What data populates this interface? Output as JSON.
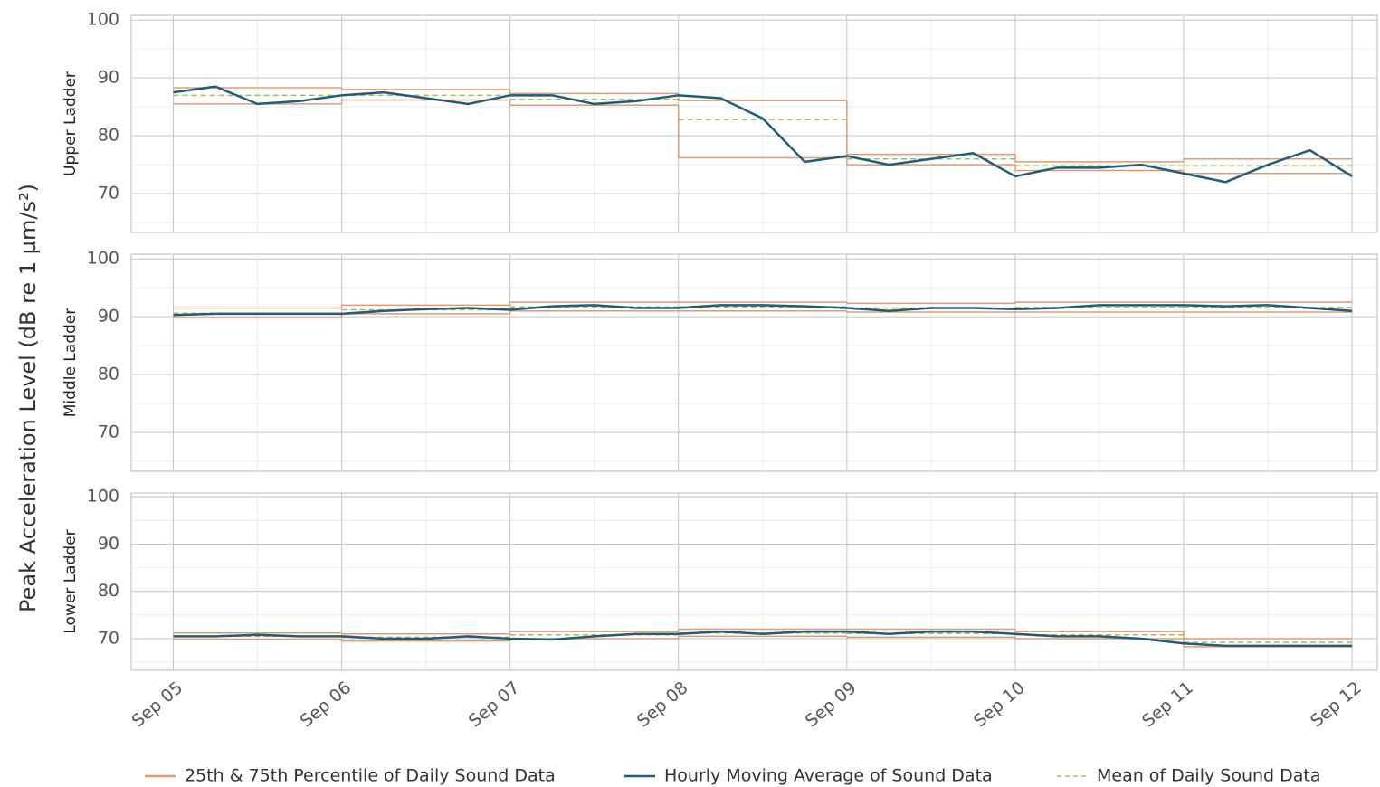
{
  "y_axis_label": "Peak Acceleration Level (dB re 1 µm/s²)",
  "legend": [
    {
      "name": "25th & 75th Percentile of Daily Sound Data",
      "color": "#e39a6f",
      "style": "solid"
    },
    {
      "name": "Hourly Moving Average of Sound Data",
      "color": "#1f5d7a",
      "style": "solid"
    },
    {
      "name": "Mean of Daily Sound Data",
      "color": "#9fbf5f",
      "style": "dashed"
    }
  ],
  "chart_data": [
    {
      "type": "line",
      "panel_label": "Upper Ladder",
      "xlim": [
        -0.25,
        7.15
      ],
      "ylim": [
        63.3,
        100.8
      ],
      "yticks": [
        70,
        80,
        90,
        100
      ],
      "yminor": [
        65,
        75,
        85,
        95
      ],
      "grid": true,
      "days": [
        0,
        1,
        2,
        3,
        4,
        5,
        6
      ],
      "p25": [
        85.5,
        86.2,
        85.3,
        76.2,
        75.0,
        74.0,
        73.5
      ],
      "p75": [
        88.3,
        88.0,
        87.3,
        86.1,
        76.8,
        75.5,
        76.0
      ],
      "mean": [
        87.0,
        87.0,
        86.3,
        82.8,
        76.0,
        74.8,
        74.8
      ],
      "x": [
        0,
        0.25,
        0.5,
        0.75,
        1,
        1.25,
        1.5,
        1.75,
        2,
        2.25,
        2.5,
        2.75,
        3,
        3.25,
        3.5,
        3.75,
        4,
        4.25,
        4.5,
        4.75,
        5,
        5.25,
        5.5,
        5.75,
        6,
        6.25,
        6.5,
        6.75,
        7
      ],
      "moving_average": [
        87.5,
        88.5,
        85.5,
        86,
        87,
        87.5,
        86.5,
        85.5,
        87,
        87,
        85.5,
        86,
        87,
        86.5,
        83,
        75.5,
        76.5,
        75,
        76,
        77,
        73,
        74.5,
        74.5,
        75,
        73.5,
        72,
        75,
        77.5,
        73
      ]
    },
    {
      "type": "line",
      "panel_label": "Middle Ladder",
      "xlim": [
        -0.25,
        7.15
      ],
      "ylim": [
        63.3,
        100.8
      ],
      "yticks": [
        70,
        80,
        90,
        100
      ],
      "yminor": [
        65,
        75,
        85,
        95
      ],
      "grid": true,
      "days": [
        0,
        1,
        2,
        3,
        4,
        5,
        6
      ],
      "p25": [
        89.8,
        90.5,
        91.0,
        91.0,
        90.8,
        90.8,
        90.8
      ],
      "p75": [
        91.5,
        92.0,
        92.5,
        92.5,
        92.3,
        92.5,
        92.5
      ],
      "mean": [
        90.6,
        91.2,
        91.7,
        91.7,
        91.5,
        91.6,
        91.6
      ],
      "x": [
        0,
        0.25,
        0.5,
        0.75,
        1,
        1.25,
        1.5,
        1.75,
        2,
        2.25,
        2.5,
        2.75,
        3,
        3.25,
        3.5,
        3.75,
        4,
        4.25,
        4.5,
        4.75,
        5,
        5.25,
        5.5,
        5.75,
        6,
        6.25,
        6.5,
        6.75,
        7
      ],
      "moving_average": [
        90.3,
        90.5,
        90.5,
        90.5,
        90.5,
        91,
        91.3,
        91.5,
        91.2,
        91.8,
        92,
        91.5,
        91.5,
        92,
        92,
        91.8,
        91.5,
        91,
        91.5,
        91.5,
        91.3,
        91.5,
        92,
        92,
        92,
        91.8,
        92,
        91.5,
        91
      ]
    },
    {
      "type": "line",
      "panel_label": "Lower Ladder",
      "xlim": [
        -0.25,
        7.15
      ],
      "ylim": [
        63.3,
        100.8
      ],
      "yticks": [
        70,
        80,
        90,
        100
      ],
      "yminor": [
        65,
        75,
        85,
        95
      ],
      "grid": true,
      "xticks": [
        {
          "value": 0,
          "label": "Sep 05"
        },
        {
          "value": 1,
          "label": "Sep 06"
        },
        {
          "value": 2,
          "label": "Sep 07"
        },
        {
          "value": 3,
          "label": "Sep 08"
        },
        {
          "value": 4,
          "label": "Sep 09"
        },
        {
          "value": 5,
          "label": "Sep 10"
        },
        {
          "value": 6,
          "label": "Sep 11"
        },
        {
          "value": 7,
          "label": "Sep 12"
        }
      ],
      "xminor": [
        0.5,
        1.5,
        2.5,
        3.5,
        4.5,
        5.5,
        6.5
      ],
      "days": [
        0,
        1,
        2,
        3,
        4,
        5,
        6
      ],
      "p25": [
        69.8,
        69.5,
        70.0,
        70.5,
        70.3,
        70.0,
        68.3
      ],
      "p75": [
        71.2,
        71.0,
        71.5,
        72.0,
        72.0,
        71.5,
        70.0
      ],
      "mean": [
        70.5,
        70.3,
        70.8,
        71.2,
        71.1,
        70.8,
        69.2
      ],
      "x": [
        0,
        0.25,
        0.5,
        0.75,
        1,
        1.25,
        1.5,
        1.75,
        2,
        2.25,
        2.5,
        2.75,
        3,
        3.25,
        3.5,
        3.75,
        4,
        4.25,
        4.5,
        4.75,
        5,
        5.25,
        5.5,
        5.75,
        6,
        6.25,
        6.5,
        6.75,
        7
      ],
      "moving_average": [
        70.5,
        70.5,
        70.8,
        70.5,
        70.5,
        70,
        70,
        70.5,
        70,
        69.8,
        70.5,
        71,
        71,
        71.5,
        71,
        71.5,
        71.5,
        71,
        71.5,
        71.5,
        71,
        70.5,
        70.5,
        70,
        69,
        68.5,
        68.5,
        68.5,
        68.5
      ]
    }
  ]
}
